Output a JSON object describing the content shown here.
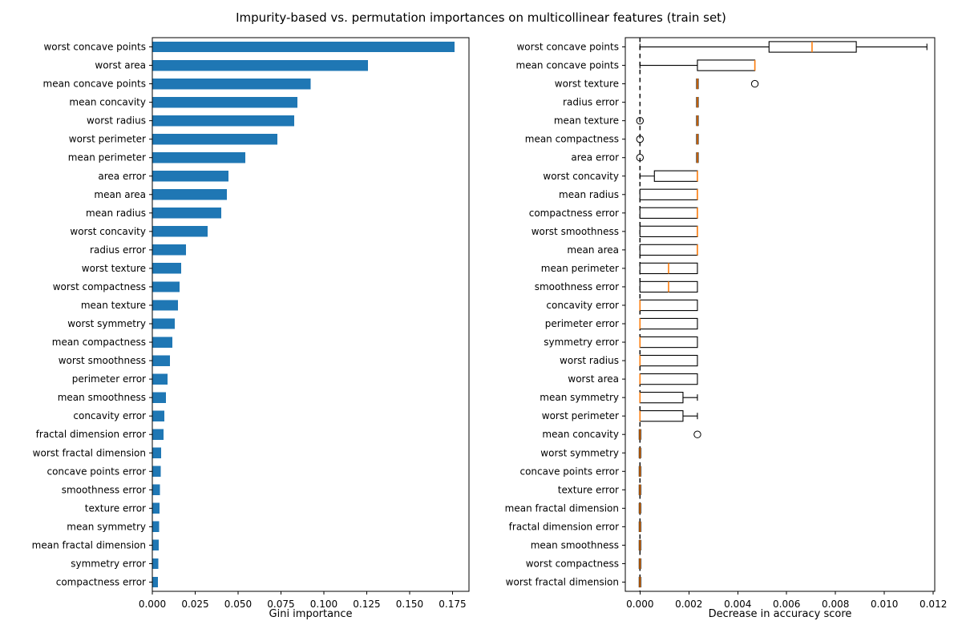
{
  "title": "Impurity-based vs. permutation importances on multicollinear features (train set)",
  "chart_data": [
    {
      "type": "bar",
      "orientation": "horizontal",
      "title": "",
      "xlabel": "Gini importance",
      "ylabel": "",
      "bar_color": "#1f77b4",
      "xlim": [
        0,
        0.1846
      ],
      "grid": false,
      "xticks": [
        0.0,
        0.025,
        0.05,
        0.075,
        0.1,
        0.125,
        0.15,
        0.175
      ],
      "xtick_labels": [
        "0.000",
        "0.025",
        "0.050",
        "0.075",
        "0.100",
        "0.125",
        "0.150",
        "0.175"
      ],
      "categories": [
        "worst concave points",
        "worst area",
        "mean concave points",
        "mean concavity",
        "worst radius",
        "worst perimeter",
        "mean perimeter",
        "area error",
        "mean area",
        "mean radius",
        "worst concavity",
        "radius error",
        "worst texture",
        "worst compactness",
        "mean texture",
        "worst symmetry",
        "mean compactness",
        "worst smoothness",
        "perimeter error",
        "mean smoothness",
        "concavity error",
        "fractal dimension error",
        "worst fractal dimension",
        "concave points error",
        "smoothness error",
        "texture error",
        "mean symmetry",
        "mean fractal dimension",
        "symmetry error",
        "compactness error"
      ],
      "values": [
        0.1762,
        0.1258,
        0.0922,
        0.0847,
        0.0827,
        0.0729,
        0.0542,
        0.0444,
        0.0434,
        0.0402,
        0.0322,
        0.0196,
        0.0168,
        0.0159,
        0.015,
        0.0131,
        0.0117,
        0.0103,
        0.0089,
        0.0079,
        0.007,
        0.0066,
        0.0052,
        0.0048,
        0.0045,
        0.0043,
        0.004,
        0.0038,
        0.0035,
        0.0033
      ]
    },
    {
      "type": "boxplot",
      "orientation": "horizontal",
      "title": "",
      "xlabel": "Decrease in accuracy score",
      "ylabel": "",
      "box_color": "#000000",
      "median_color": "#ff7f0e",
      "zero_line": true,
      "xlim": [
        -0.0006,
        0.01206
      ],
      "grid": false,
      "xticks": [
        0.0,
        0.002,
        0.004,
        0.006,
        0.008,
        0.01,
        0.012
      ],
      "xtick_labels": [
        "0.000",
        "0.002",
        "0.004",
        "0.006",
        "0.008",
        "0.010",
        "0.012"
      ],
      "rows": [
        {
          "label": "worst concave points",
          "whislo": 0.0,
          "q1": 0.00528,
          "med": 0.00704,
          "q3": 0.00885,
          "whishi": 0.01174,
          "fliers": []
        },
        {
          "label": "mean concave points",
          "whislo": 0.0,
          "q1": 0.00235,
          "med": 0.0047,
          "q3": 0.0047,
          "whishi": 0.0047,
          "fliers": []
        },
        {
          "label": "worst texture",
          "whislo": 0.00235,
          "q1": 0.00235,
          "med": 0.00235,
          "q3": 0.00235,
          "whishi": 0.00235,
          "fliers": [
            0.0047
          ]
        },
        {
          "label": "radius error",
          "whislo": 0.00235,
          "q1": 0.00235,
          "med": 0.00235,
          "q3": 0.00235,
          "whishi": 0.00235,
          "fliers": []
        },
        {
          "label": "mean texture",
          "whislo": 0.00235,
          "q1": 0.00235,
          "med": 0.00235,
          "q3": 0.00235,
          "whishi": 0.00235,
          "fliers": [
            0.0
          ]
        },
        {
          "label": "mean compactness",
          "whislo": 0.00235,
          "q1": 0.00235,
          "med": 0.00235,
          "q3": 0.00235,
          "whishi": 0.00235,
          "fliers": [
            0.0
          ]
        },
        {
          "label": "area error",
          "whislo": 0.00235,
          "q1": 0.00235,
          "med": 0.00235,
          "q3": 0.00235,
          "whishi": 0.00235,
          "fliers": [
            0.0
          ]
        },
        {
          "label": "worst concavity",
          "whislo": 0.0,
          "q1": 0.00059,
          "med": 0.00235,
          "q3": 0.00235,
          "whishi": 0.00235,
          "fliers": []
        },
        {
          "label": "mean radius",
          "whislo": 0.0,
          "q1": 0.0,
          "med": 0.00235,
          "q3": 0.00235,
          "whishi": 0.00235,
          "fliers": []
        },
        {
          "label": "compactness error",
          "whislo": 0.0,
          "q1": 0.0,
          "med": 0.00235,
          "q3": 0.00235,
          "whishi": 0.00235,
          "fliers": []
        },
        {
          "label": "worst smoothness",
          "whislo": 0.0,
          "q1": 0.0,
          "med": 0.00235,
          "q3": 0.00235,
          "whishi": 0.00235,
          "fliers": []
        },
        {
          "label": "mean area",
          "whislo": 0.0,
          "q1": 0.0,
          "med": 0.00235,
          "q3": 0.00235,
          "whishi": 0.00235,
          "fliers": []
        },
        {
          "label": "mean perimeter",
          "whislo": 0.0,
          "q1": 0.0,
          "med": 0.00117,
          "q3": 0.00235,
          "whishi": 0.00235,
          "fliers": []
        },
        {
          "label": "smoothness error",
          "whislo": 0.0,
          "q1": 0.0,
          "med": 0.00117,
          "q3": 0.00235,
          "whishi": 0.00235,
          "fliers": []
        },
        {
          "label": "concavity error",
          "whislo": 0.0,
          "q1": 0.0,
          "med": 0.0,
          "q3": 0.00235,
          "whishi": 0.00235,
          "fliers": []
        },
        {
          "label": "perimeter error",
          "whislo": 0.0,
          "q1": 0.0,
          "med": 0.0,
          "q3": 0.00235,
          "whishi": 0.00235,
          "fliers": []
        },
        {
          "label": "symmetry error",
          "whislo": 0.0,
          "q1": 0.0,
          "med": 0.0,
          "q3": 0.00235,
          "whishi": 0.00235,
          "fliers": []
        },
        {
          "label": "worst radius",
          "whislo": 0.0,
          "q1": 0.0,
          "med": 0.0,
          "q3": 0.00235,
          "whishi": 0.00235,
          "fliers": []
        },
        {
          "label": "worst area",
          "whislo": 0.0,
          "q1": 0.0,
          "med": 0.0,
          "q3": 0.00235,
          "whishi": 0.00235,
          "fliers": []
        },
        {
          "label": "mean symmetry",
          "whislo": 0.0,
          "q1": 0.0,
          "med": 0.0,
          "q3": 0.00176,
          "whishi": 0.00235,
          "fliers": []
        },
        {
          "label": "worst perimeter",
          "whislo": 0.0,
          "q1": 0.0,
          "med": 0.0,
          "q3": 0.00176,
          "whishi": 0.00235,
          "fliers": []
        },
        {
          "label": "mean concavity",
          "whislo": 0.0,
          "q1": 0.0,
          "med": 0.0,
          "q3": 0.0,
          "whishi": 0.0,
          "fliers": [
            0.00235
          ]
        },
        {
          "label": "worst symmetry",
          "whislo": 0.0,
          "q1": 0.0,
          "med": 0.0,
          "q3": 0.0,
          "whishi": 0.0,
          "fliers": []
        },
        {
          "label": "concave points error",
          "whislo": 0.0,
          "q1": 0.0,
          "med": 0.0,
          "q3": 0.0,
          "whishi": 0.0,
          "fliers": []
        },
        {
          "label": "texture error",
          "whislo": 0.0,
          "q1": 0.0,
          "med": 0.0,
          "q3": 0.0,
          "whishi": 0.0,
          "fliers": []
        },
        {
          "label": "mean fractal dimension",
          "whislo": 0.0,
          "q1": 0.0,
          "med": 0.0,
          "q3": 0.0,
          "whishi": 0.0,
          "fliers": []
        },
        {
          "label": "fractal dimension error",
          "whislo": 0.0,
          "q1": 0.0,
          "med": 0.0,
          "q3": 0.0,
          "whishi": 0.0,
          "fliers": []
        },
        {
          "label": "mean smoothness",
          "whislo": 0.0,
          "q1": 0.0,
          "med": 0.0,
          "q3": 0.0,
          "whishi": 0.0,
          "fliers": []
        },
        {
          "label": "worst compactness",
          "whislo": 0.0,
          "q1": 0.0,
          "med": 0.0,
          "q3": 0.0,
          "whishi": 0.0,
          "fliers": []
        },
        {
          "label": "worst fractal dimension",
          "whislo": 0.0,
          "q1": 0.0,
          "med": 0.0,
          "q3": 0.0,
          "whishi": 0.0,
          "fliers": []
        }
      ]
    }
  ]
}
